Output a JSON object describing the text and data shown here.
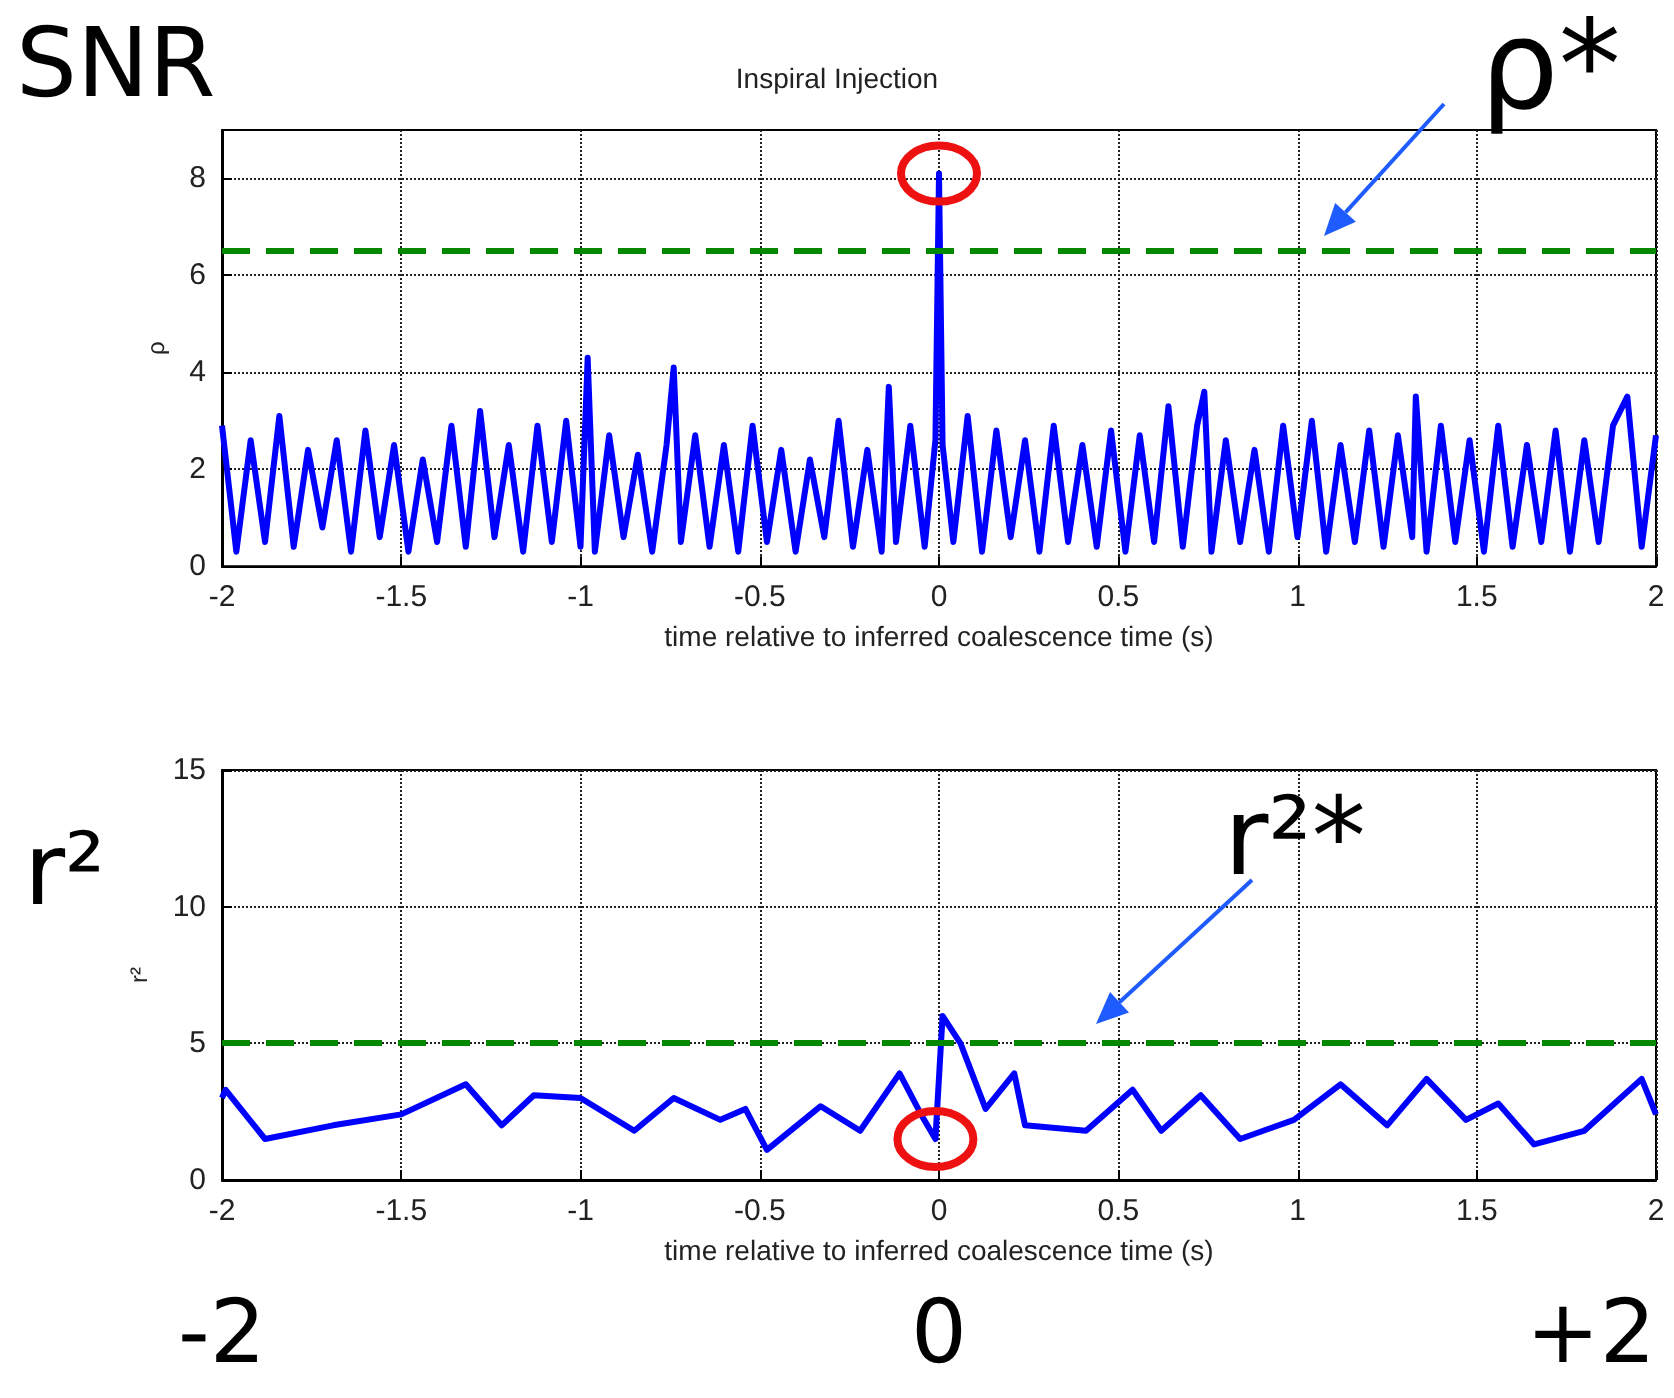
{
  "chart_data": [
    {
      "type": "line",
      "title": "Inspiral Injection",
      "xlabel": "time relative to inferred coalescence time (s)",
      "ylabel": "ρ",
      "x": [
        -2,
        -1.96,
        -1.92,
        -1.88,
        -1.84,
        -1.8,
        -1.76,
        -1.72,
        -1.68,
        -1.64,
        -1.6,
        -1.56,
        -1.52,
        -1.48,
        -1.44,
        -1.4,
        -1.36,
        -1.32,
        -1.28,
        -1.24,
        -1.2,
        -1.16,
        -1.12,
        -1.08,
        -1.04,
        -1,
        -0.98,
        -0.96,
        -0.92,
        -0.88,
        -0.84,
        -0.8,
        -0.76,
        -0.74,
        -0.72,
        -0.68,
        -0.64,
        -0.6,
        -0.56,
        -0.52,
        -0.48,
        -0.44,
        -0.4,
        -0.36,
        -0.32,
        -0.28,
        -0.24,
        -0.2,
        -0.16,
        -0.14,
        -0.12,
        -0.08,
        -0.04,
        -0.01,
        0,
        0.01,
        0.04,
        0.08,
        0.12,
        0.16,
        0.2,
        0.24,
        0.28,
        0.32,
        0.36,
        0.4,
        0.44,
        0.48,
        0.52,
        0.56,
        0.6,
        0.64,
        0.68,
        0.72,
        0.74,
        0.76,
        0.8,
        0.84,
        0.88,
        0.92,
        0.96,
        1,
        1.04,
        1.08,
        1.12,
        1.16,
        1.2,
        1.24,
        1.28,
        1.32,
        1.33,
        1.36,
        1.4,
        1.44,
        1.48,
        1.52,
        1.56,
        1.6,
        1.64,
        1.68,
        1.72,
        1.76,
        1.8,
        1.84,
        1.88,
        1.92,
        1.96,
        2
      ],
      "series": [
        {
          "color": "#0000ff",
          "values": [
            2.9,
            0.3,
            2.6,
            0.5,
            3.1,
            0.4,
            2.4,
            0.8,
            2.6,
            0.3,
            2.8,
            0.6,
            2.5,
            0.3,
            2.2,
            0.5,
            2.9,
            0.4,
            3.2,
            0.6,
            2.5,
            0.3,
            2.9,
            0.5,
            3.0,
            0.4,
            4.3,
            0.3,
            2.7,
            0.6,
            2.3,
            0.3,
            2.5,
            4.1,
            0.5,
            2.7,
            0.4,
            2.5,
            0.3,
            2.9,
            0.5,
            2.4,
            0.3,
            2.2,
            0.6,
            3.0,
            0.4,
            2.4,
            0.3,
            3.7,
            0.5,
            2.9,
            0.4,
            2.6,
            8.1,
            2.5,
            0.5,
            3.1,
            0.3,
            2.8,
            0.6,
            2.6,
            0.3,
            2.9,
            0.5,
            2.5,
            0.4,
            2.8,
            0.3,
            2.7,
            0.5,
            3.3,
            0.4,
            2.9,
            3.6,
            0.3,
            2.6,
            0.5,
            2.4,
            0.3,
            2.9,
            0.6,
            3.0,
            0.3,
            2.5,
            0.5,
            2.8,
            0.4,
            2.7,
            0.6,
            3.5,
            0.3,
            2.9,
            0.5,
            2.6,
            0.3,
            2.9,
            0.4,
            2.5,
            0.5,
            2.8,
            0.3,
            2.6,
            0.5,
            2.9,
            3.5,
            0.4,
            2.7
          ]
        }
      ],
      "xlim": [
        -2,
        2
      ],
      "xticks": [
        -2,
        -1.5,
        -1,
        -0.5,
        0,
        0.5,
        1,
        1.5,
        2
      ],
      "ylim": [
        0,
        9
      ],
      "yticks": [
        0,
        2,
        4,
        6,
        8
      ],
      "grid": true,
      "ref_lines": [
        {
          "axis": "y",
          "value": 6.5,
          "label": "ρ*",
          "color": "#008800",
          "line_style": "dashed"
        }
      ],
      "annotations": [
        "SNR"
      ]
    },
    {
      "type": "line",
      "xlabel": "time relative to inferred coalescence time (s)",
      "ylabel": "r²",
      "x": [
        -2,
        -1.99,
        -1.88,
        -1.69,
        -1.5,
        -1.32,
        -1.22,
        -1.13,
        -1.0,
        -0.85,
        -0.74,
        -0.61,
        -0.54,
        -0.48,
        -0.33,
        -0.22,
        -0.11,
        -0.05,
        -0.01,
        0.01,
        0.06,
        0.13,
        0.21,
        0.24,
        0.41,
        0.54,
        0.62,
        0.73,
        0.84,
        0.99,
        1.12,
        1.25,
        1.36,
        1.47,
        1.56,
        1.66,
        1.8,
        1.96,
        2
      ],
      "series": [
        {
          "color": "#0000ff",
          "values": [
            3.0,
            3.3,
            1.5,
            2.0,
            2.4,
            3.5,
            2.0,
            3.1,
            3.0,
            1.8,
            3.0,
            2.2,
            2.6,
            1.1,
            2.7,
            1.8,
            3.9,
            2.4,
            1.5,
            6.0,
            5.0,
            2.6,
            3.9,
            2.0,
            1.8,
            3.3,
            1.8,
            3.1,
            1.5,
            2.2,
            3.5,
            2.0,
            3.7,
            2.2,
            2.8,
            1.3,
            1.8,
            3.7,
            2.4
          ]
        }
      ],
      "xlim": [
        -2,
        2
      ],
      "xticks": [
        -2,
        -1.5,
        -1,
        -0.5,
        0,
        0.5,
        1,
        1.5,
        2
      ],
      "ylim": [
        0,
        15
      ],
      "yticks": [
        0,
        5,
        10,
        15
      ],
      "grid": true,
      "ref_lines": [
        {
          "axis": "y",
          "value": 5,
          "label": "r²*",
          "color": "#008800",
          "line_style": "dashed"
        }
      ],
      "annotations": [
        "r²",
        "-2",
        "0",
        "+2"
      ]
    }
  ]
}
